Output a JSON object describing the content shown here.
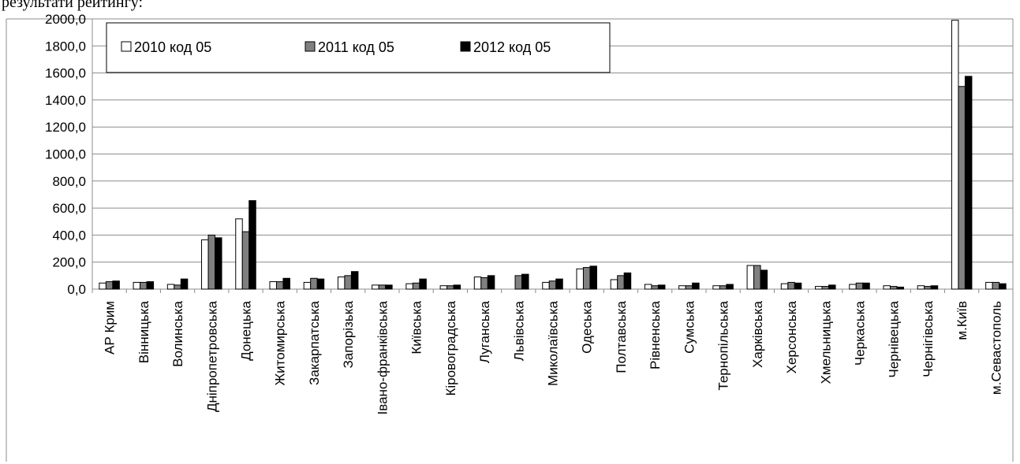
{
  "chart_data": {
    "type": "bar",
    "title": "",
    "xlabel": "",
    "ylabel": "",
    "ylim": [
      0,
      2000
    ],
    "yticks": [
      "0,0",
      "200,0",
      "400,0",
      "600,0",
      "800,0",
      "1000,0",
      "1200,0",
      "1400,0",
      "1600,0",
      "1800,0",
      "2000,0"
    ],
    "ytick_values": [
      0,
      200,
      400,
      600,
      800,
      1000,
      1200,
      1400,
      1600,
      1800,
      2000
    ],
    "grid": true,
    "legend_position": "top-left",
    "categories": [
      "АР Крим",
      "Вінницька",
      "Волинська",
      "Дніпропетровська",
      "Донецька",
      "Житомирська",
      "Закарпатська",
      "Запорізька",
      "Івано-франківська",
      "Київська",
      "Кіровоградська",
      "Луганська",
      "Львівська",
      "Миколаївська",
      "Одеська",
      "Полтавська",
      "Рівненська",
      "Сумська",
      "Тернопільська",
      "Харківська",
      "Херсонська",
      "Хмельницька",
      "Черкаська",
      "Чернівецька",
      "Чернігівська",
      "м.Київ",
      "м.Севастополь"
    ],
    "series": [
      {
        "name": "2010 код 05",
        "color": "#ffffff",
        "values": [
          45,
          50,
          35,
          365,
          520,
          55,
          50,
          90,
          30,
          40,
          25,
          90,
          0,
          50,
          150,
          70,
          35,
          25,
          25,
          175,
          40,
          20,
          35,
          25,
          25,
          1990,
          50
        ]
      },
      {
        "name": "2011 код 05",
        "color": "#808080",
        "values": [
          55,
          50,
          30,
          400,
          425,
          55,
          80,
          100,
          30,
          45,
          25,
          85,
          100,
          60,
          160,
          100,
          25,
          25,
          25,
          175,
          50,
          20,
          45,
          20,
          20,
          1500,
          50
        ]
      },
      {
        "name": "2012 код 05",
        "color": "#000000",
        "values": [
          60,
          55,
          75,
          380,
          655,
          80,
          75,
          130,
          30,
          75,
          30,
          100,
          110,
          75,
          170,
          120,
          30,
          45,
          35,
          140,
          45,
          30,
          45,
          15,
          25,
          1575,
          40
        ]
      }
    ]
  },
  "page": {
    "cut_caption": "результати рейтингу:"
  }
}
